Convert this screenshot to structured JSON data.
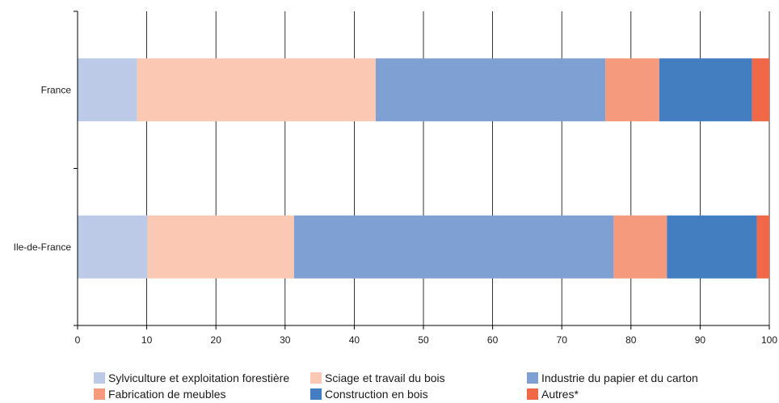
{
  "chart_data": {
    "type": "bar",
    "orientation": "horizontal",
    "stacked": true,
    "categories": [
      "France",
      "Ile-de-France"
    ],
    "series": [
      {
        "name": "Sylviculture et exploitation forestière",
        "color": "#bccae8",
        "values": [
          8.6,
          10.1
        ]
      },
      {
        "name": "Sciage et travail du bois",
        "color": "#fbc9b3",
        "values": [
          34.5,
          21.2
        ]
      },
      {
        "name": "Industrie du papier et du carton",
        "color": "#7fa0d3",
        "values": [
          33.2,
          46.2
        ]
      },
      {
        "name": "Fabrication de meubles",
        "color": "#f59a7c",
        "values": [
          7.8,
          7.7
        ]
      },
      {
        "name": "Construction en bois",
        "color": "#437ec0",
        "values": [
          13.4,
          13.0
        ]
      },
      {
        "name": "Autres*",
        "color": "#ef6848",
        "values": [
          2.5,
          1.8
        ]
      }
    ],
    "xlim": [
      0,
      100
    ],
    "xticks": [
      "0",
      "10",
      "20",
      "30",
      "40",
      "50",
      "60",
      "70",
      "80",
      "90",
      "100"
    ],
    "grid": true,
    "legend_position": "bottom",
    "title": "",
    "xlabel": "",
    "ylabel": ""
  }
}
